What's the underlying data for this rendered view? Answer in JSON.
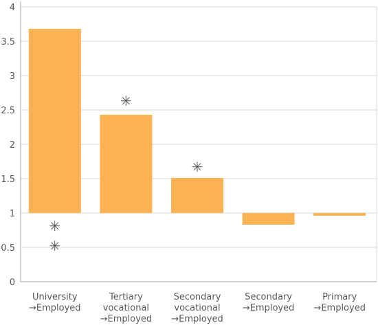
{
  "chart_data": {
    "type": "bar",
    "baseline": 1,
    "ylim": [
      0,
      4
    ],
    "yticks": [
      "0",
      "0.5",
      "1",
      "1.5",
      "2",
      "2.5",
      "3",
      "3.5",
      "4"
    ],
    "grid": true,
    "categories": [
      [
        "University",
        "→Employed"
      ],
      [
        "Tertiary",
        "vocational",
        "→Employed"
      ],
      [
        "Secondary",
        "vocational",
        "→Employed"
      ],
      [
        "Secondary",
        "→Employed"
      ],
      [
        "Primary",
        "→Employed"
      ]
    ],
    "values": [
      3.68,
      2.43,
      1.51,
      0.83,
      0.96
    ],
    "markers": [
      {
        "category": 0,
        "y": 0.81,
        "symbol": "✳"
      },
      {
        "category": 0,
        "y": 0.52,
        "symbol": "✳"
      },
      {
        "category": 1,
        "y": 2.63,
        "symbol": "✳"
      },
      {
        "category": 2,
        "y": 1.67,
        "symbol": "✳"
      }
    ],
    "colors": {
      "bar": "#fbb254",
      "grid": "#d9d9d9",
      "axis": "#a6a6a6",
      "text": "#595959"
    }
  }
}
